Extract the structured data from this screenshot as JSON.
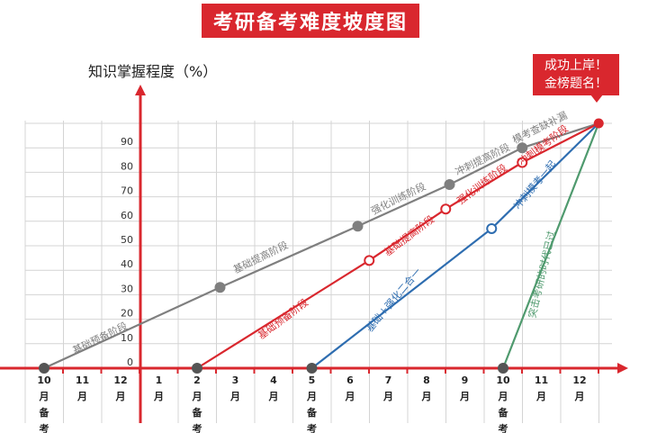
{
  "title": "考研备考难度坡度图",
  "y_axis_label": "知识掌握程度（%）",
  "callout": {
    "line1": "成功上岸！",
    "line2": "金榜题名！"
  },
  "colors": {
    "gray": "#7f7f7f",
    "red": "#d9272e",
    "blue": "#2e6db0",
    "green": "#4f9a6e",
    "grid": "#d4d4d4"
  },
  "chart_data": {
    "type": "line",
    "x_ticks": [
      "10月",
      "11月",
      "12月",
      "1月",
      "2月",
      "3月",
      "4月",
      "5月",
      "6月",
      "7月",
      "8月",
      "9月",
      "10月",
      "11月",
      "12月"
    ],
    "x_tick_suffixes": [
      {
        "tick": 0,
        "text": "备考"
      },
      {
        "tick": 4,
        "text": "备考"
      },
      {
        "tick": 7,
        "text": "备考"
      },
      {
        "tick": 12,
        "text": "备考"
      }
    ],
    "y_ticks": [
      0,
      10,
      20,
      30,
      40,
      50,
      60,
      70,
      80,
      90
    ],
    "ylim": [
      0,
      100
    ],
    "endpoint": {
      "x": 14.5,
      "y": 100
    },
    "series": [
      {
        "color": "gray",
        "points": [
          {
            "x": 0,
            "y": 0
          },
          {
            "x": 4.6,
            "y": 33
          },
          {
            "x": 8.2,
            "y": 58
          },
          {
            "x": 10.6,
            "y": 75
          },
          {
            "x": 12.5,
            "y": 90
          },
          {
            "x": 14.5,
            "y": 100
          }
        ],
        "stages": [
          {
            "label": "基础预备阶段",
            "x": 1.5,
            "y": 11,
            "angle": -26
          },
          {
            "label": "基础提高阶段",
            "x": 5.7,
            "y": 44,
            "angle": -26
          },
          {
            "label": "强化训练阶段",
            "x": 9.3,
            "y": 68,
            "angle": -26
          },
          {
            "label": "冲刺提高阶段",
            "x": 11.5,
            "y": 84,
            "angle": -26
          },
          {
            "label": "模考查缺补漏",
            "x": 13.0,
            "y": 97,
            "angle": -26
          }
        ]
      },
      {
        "color": "red",
        "points": [
          {
            "x": 4,
            "y": 0
          },
          {
            "x": 8.5,
            "y": 44
          },
          {
            "x": 10.5,
            "y": 65
          },
          {
            "x": 12.5,
            "y": 84
          },
          {
            "x": 14.5,
            "y": 100
          }
        ],
        "stages": [
          {
            "label": "基础预备阶段",
            "x": 6.3,
            "y": 19,
            "angle": -37
          },
          {
            "label": "基础提高阶段",
            "x": 9.6,
            "y": 53,
            "angle": -37
          },
          {
            "label": "强化训练阶段",
            "x": 11.5,
            "y": 74,
            "angle": -37
          },
          {
            "label": "冲刺模考阶段",
            "x": 13.1,
            "y": 90,
            "angle": -37
          }
        ]
      },
      {
        "color": "blue",
        "points": [
          {
            "x": 7,
            "y": 0
          },
          {
            "x": 11.7,
            "y": 57
          },
          {
            "x": 14.5,
            "y": 100
          }
        ],
        "stages": [
          {
            "label": "基础＋强化二合一",
            "x": 9.2,
            "y": 27,
            "angle": -50
          },
          {
            "label": "冲刺模考一起",
            "x": 12.9,
            "y": 74,
            "angle": -50
          }
        ]
      },
      {
        "color": "green",
        "points": [
          {
            "x": 12,
            "y": 0
          },
          {
            "x": 14.5,
            "y": 100
          }
        ],
        "stages": [
          {
            "label": "突击考研的时代已过",
            "x": 13.1,
            "y": 38,
            "angle": -77
          }
        ]
      }
    ]
  }
}
